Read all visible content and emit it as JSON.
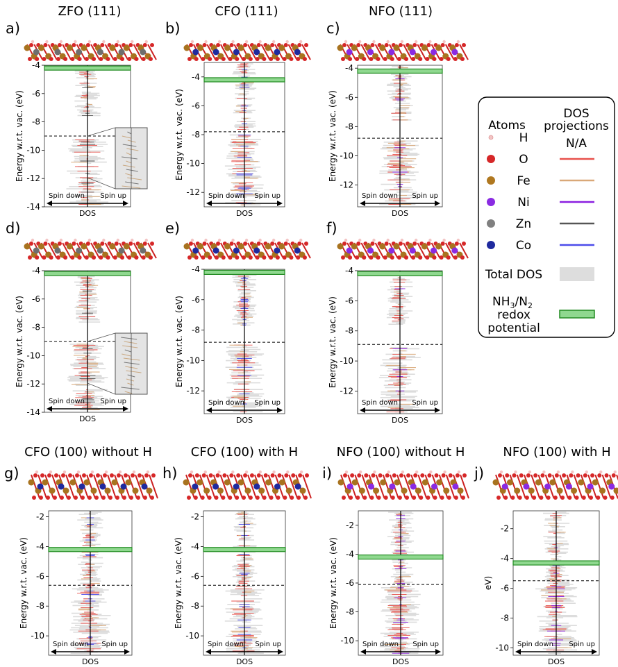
{
  "figure": {
    "common": {
      "ylabel_full": "Energy w.r.t. vac. (eV)",
      "ylabel_short": "eV)",
      "xlabel": "DOS",
      "spin_down": "Spin down",
      "spin_up": "Spin up"
    },
    "panels": [
      {
        "id": "a",
        "letter": "a)",
        "title": "ZFO (111)",
        "yticks": [
          "-4",
          "-6",
          "-8",
          "-10",
          "-12",
          "-14"
        ],
        "ymin": -14,
        "ymax": -4,
        "fermi": -9.0,
        "redox": -4.2,
        "tm": "Zn",
        "inset": true
      },
      {
        "id": "b",
        "letter": "b)",
        "title": "CFO (111)",
        "yticks": [
          "-4",
          "-6",
          "-8",
          "-10",
          "-12"
        ],
        "ymin": -13,
        "ymax": -3,
        "fermi": -7.8,
        "redox": -4.2,
        "tm": "Co",
        "inset": false
      },
      {
        "id": "c",
        "letter": "c)",
        "title": "NFO (111)",
        "yticks": [
          "-4",
          "-6",
          "-8",
          "-10",
          "-12"
        ],
        "ymin": -13.5,
        "ymax": -3.8,
        "fermi": -8.8,
        "redox": -4.2,
        "tm": "Ni",
        "inset": false
      },
      {
        "id": "d",
        "letter": "d)",
        "title": "",
        "yticks": [
          "-4",
          "-6",
          "-8",
          "-10",
          "-12",
          "-14"
        ],
        "ymin": -14,
        "ymax": -4,
        "fermi": -9.0,
        "redox": -4.2,
        "tm": "Zn",
        "inset": true
      },
      {
        "id": "e",
        "letter": "e)",
        "title": "",
        "yticks": [
          "-4",
          "-6",
          "-8",
          "-10",
          "-12"
        ],
        "ymin": -13.5,
        "ymax": -4,
        "fermi": -8.8,
        "redox": -4.2,
        "tm": "Co",
        "inset": false
      },
      {
        "id": "f",
        "letter": "f)",
        "title": "",
        "yticks": [
          "-4",
          "-6",
          "-8",
          "-10",
          "-12"
        ],
        "ymin": -13.5,
        "ymax": -4,
        "fermi": -8.9,
        "redox": -4.2,
        "tm": "Ni",
        "inset": false
      },
      {
        "id": "g",
        "letter": "g)",
        "title": "CFO (100) without H",
        "yticks": [
          "-2",
          "-4",
          "-6",
          "-8",
          "-10"
        ],
        "ymin": -11.3,
        "ymax": -1.6,
        "fermi": -6.6,
        "redox": -4.2,
        "tm": "Co",
        "inset": false
      },
      {
        "id": "h",
        "letter": "h)",
        "title": "CFO (100) with H",
        "yticks": [
          "-2",
          "-4",
          "-6",
          "-8",
          "-10"
        ],
        "ymin": -11.3,
        "ymax": -1.6,
        "fermi": -6.6,
        "redox": -4.2,
        "tm": "Co",
        "inset": false
      },
      {
        "id": "i",
        "letter": "i)",
        "title": "NFO (100) without H",
        "yticks": [
          "-2",
          "-4",
          "-6",
          "-8",
          "-10"
        ],
        "ymin": -11,
        "ymax": -1,
        "fermi": -6.1,
        "redox": -4.2,
        "tm": "Ni",
        "inset": false
      },
      {
        "id": "j",
        "letter": "j)",
        "title": "NFO (100) with H",
        "yticks": [
          "-2",
          "-4",
          "-6",
          "-8",
          "-10"
        ],
        "ymin": -10.5,
        "ymax": -0.8,
        "fermi": -5.5,
        "redox": -4.3,
        "tm": "Ni",
        "inset": false
      }
    ]
  },
  "legend": {
    "atoms_header": "Atoms",
    "dos_header_1": "DOS",
    "dos_header_2": "projections",
    "na": "N/A",
    "rows": [
      {
        "atom": "H",
        "color": "#f3c4c4",
        "line": ""
      },
      {
        "atom": "O",
        "color": "#d62728",
        "line": "#e8504a"
      },
      {
        "atom": "Fe",
        "color": "#b07820",
        "line": "#d9a878"
      },
      {
        "atom": "Ni",
        "color": "#8a2be2",
        "line": "#8a1ee0"
      },
      {
        "atom": "Zn",
        "color": "#808080",
        "line": "#555555"
      },
      {
        "atom": "Co",
        "color": "#1f2a9e",
        "line": "#4b4bea"
      }
    ],
    "total_dos": "Total DOS",
    "total_dos_color": "#dddddd",
    "redox_1": "NH",
    "redox_sub1": "3",
    "redox_slash": "/N",
    "redox_sub2": "2",
    "redox_2": "redox",
    "redox_3": "potential",
    "redox_color": "#8fd88f",
    "redox_edge": "#228b22"
  }
}
